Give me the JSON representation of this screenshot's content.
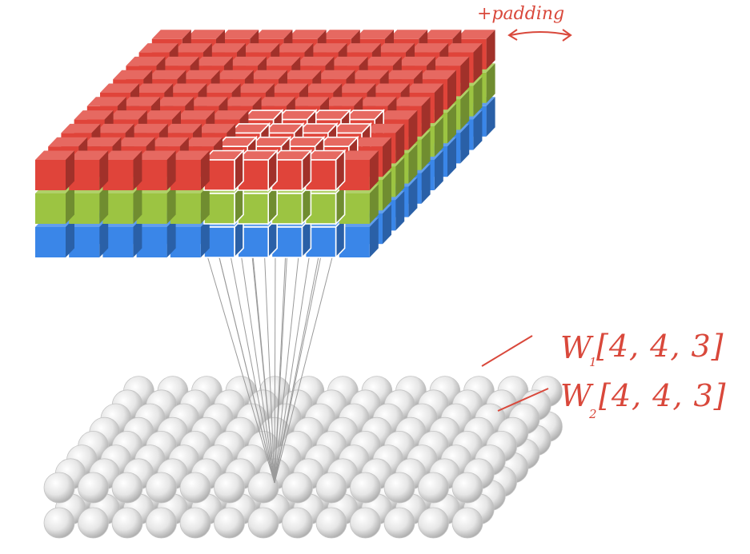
{
  "annotations": {
    "padding_label": "+padding",
    "weights": [
      {
        "letter": "W",
        "subscript": "1",
        "shape": "[4, 4, 3]"
      },
      {
        "letter": "W",
        "subscript": "2",
        "shape": "[4, 4, 3]"
      }
    ]
  },
  "input_volume": {
    "channels": [
      {
        "name": "red",
        "color": "#e0443a"
      },
      {
        "name": "green",
        "color": "#9cc442"
      },
      {
        "name": "blue",
        "color": "#3a86e8"
      }
    ],
    "width": 10,
    "depth": 10,
    "receptive_field": {
      "size": 4,
      "channels": 3
    }
  },
  "output_layer": {
    "neuron_color": "#ececec",
    "layers": 2
  },
  "colors": {
    "annotation": "#d9483b",
    "connection": "#9a9a9a"
  }
}
